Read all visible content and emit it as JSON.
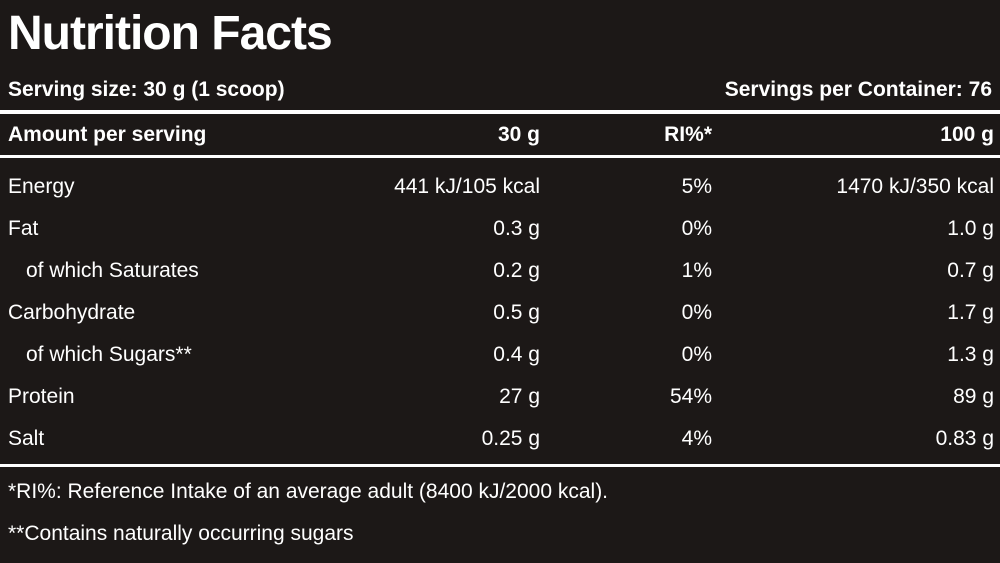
{
  "title": "Nutrition Facts",
  "serving": {
    "size": "Serving size: 30 g (1 scoop)",
    "per_container": "Servings per Container: 76"
  },
  "header": {
    "amount": "Amount per serving",
    "col_30g": "30 g",
    "col_ri": "RI%*",
    "col_100g": "100 g"
  },
  "rows": [
    {
      "name": "Energy",
      "per30": "441 kJ/105 kcal",
      "ri": "5%",
      "per100": "1470 kJ/350 kcal",
      "indent": false
    },
    {
      "name": "Fat",
      "per30": "0.3 g",
      "ri": "0%",
      "per100": "1.0 g",
      "indent": false
    },
    {
      "name": "of which Saturates",
      "per30": "0.2 g",
      "ri": "1%",
      "per100": "0.7 g",
      "indent": true
    },
    {
      "name": "Carbohydrate",
      "per30": "0.5 g",
      "ri": "0%",
      "per100": "1.7 g",
      "indent": false
    },
    {
      "name": "of which Sugars**",
      "per30": "0.4 g",
      "ri": "0%",
      "per100": "1.3 g",
      "indent": true
    },
    {
      "name": "Protein",
      "per30": "27 g",
      "ri": "54%",
      "per100": "89 g",
      "indent": false
    },
    {
      "name": "Salt",
      "per30": "0.25 g",
      "ri": "4%",
      "per100": "0.83 g",
      "indent": false
    }
  ],
  "footnotes": {
    "ri": "*RI%: Reference Intake of an average adult (8400 kJ/2000 kcal).",
    "sugars": "**Contains naturally occurring sugars"
  },
  "colors": {
    "background": "#1c1817",
    "text": "#ffffff"
  }
}
